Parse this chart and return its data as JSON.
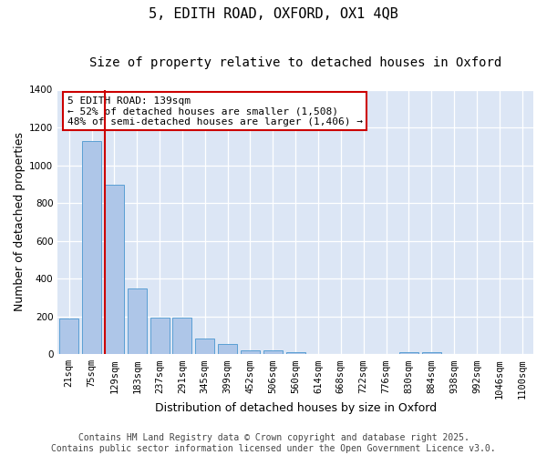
{
  "title_line1": "5, EDITH ROAD, OXFORD, OX1 4QB",
  "title_line2": "Size of property relative to detached houses in Oxford",
  "xlabel": "Distribution of detached houses by size in Oxford",
  "ylabel": "Number of detached properties",
  "categories": [
    "21sqm",
    "75sqm",
    "129sqm",
    "183sqm",
    "237sqm",
    "291sqm",
    "345sqm",
    "399sqm",
    "452sqm",
    "506sqm",
    "560sqm",
    "614sqm",
    "668sqm",
    "722sqm",
    "776sqm",
    "830sqm",
    "884sqm",
    "938sqm",
    "992sqm",
    "1046sqm",
    "1100sqm"
  ],
  "values": [
    190,
    1130,
    895,
    350,
    195,
    195,
    85,
    55,
    20,
    20,
    10,
    0,
    0,
    0,
    0,
    10,
    10,
    0,
    0,
    0,
    0
  ],
  "bar_color": "#aec6e8",
  "bar_edge_color": "#5a9fd4",
  "background_color": "#dce6f5",
  "grid_color": "#ffffff",
  "vline_color": "#cc0000",
  "vline_xindex": 2,
  "annotation_text": "5 EDITH ROAD: 139sqm\n← 52% of detached houses are smaller (1,508)\n48% of semi-detached houses are larger (1,406) →",
  "annotation_box_facecolor": "#ffffff",
  "annotation_box_edgecolor": "#cc0000",
  "ylim": [
    0,
    1400
  ],
  "yticks": [
    0,
    200,
    400,
    600,
    800,
    1000,
    1200,
    1400
  ],
  "fig_facecolor": "#ffffff",
  "title_fontsize": 11,
  "subtitle_fontsize": 10,
  "axis_label_fontsize": 9,
  "tick_fontsize": 7.5,
  "annotation_fontsize": 8,
  "footer_fontsize": 7
}
